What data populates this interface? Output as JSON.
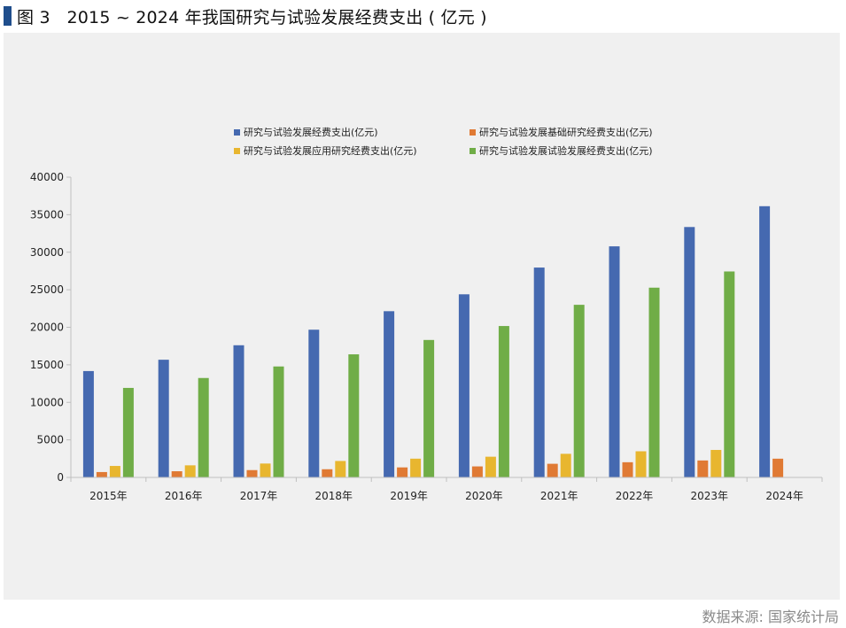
{
  "figure": {
    "label": "图 3",
    "title": "2015 ~ 2024 年我国研究与试验发展经费支出 ( 亿元 )",
    "source": "数据来源: 国家统计局"
  },
  "colors": {
    "series": [
      "#4569b0",
      "#e07a34",
      "#e8b62f",
      "#70ad47"
    ],
    "panel_bg": "#f0f0f0",
    "axis": "#bfbfbf"
  },
  "chart_data": {
    "type": "bar",
    "title": "",
    "xlabel": "",
    "ylabel": "",
    "ylim": [
      0,
      40000
    ],
    "yticks": [
      0,
      5000,
      10000,
      15000,
      20000,
      25000,
      30000,
      35000,
      40000
    ],
    "grid": false,
    "legend_position": "top",
    "categories": [
      "2015年",
      "2016年",
      "2017年",
      "2018年",
      "2019年",
      "2020年",
      "2021年",
      "2022年",
      "2023年",
      "2024年"
    ],
    "series": [
      {
        "name": "研究与试验发展经费支出(亿元)",
        "values": [
          14170,
          15677,
          17606,
          19678,
          22144,
          24393,
          27956,
          30783,
          33357,
          36130
        ]
      },
      {
        "name": "研究与试验发展基础研究经费支出(亿元)",
        "values": [
          716,
          823,
          976,
          1090,
          1336,
          1467,
          1817,
          2023,
          2259,
          2497
        ]
      },
      {
        "name": "研究与试验发展应用研究经费支出(亿元)",
        "values": [
          1529,
          1610,
          1849,
          2191,
          2499,
          2757,
          3145,
          3482,
          3662,
          null
        ]
      },
      {
        "name": "研究与试验发展试验发展经费支出(亿元)",
        "values": [
          11925,
          13244,
          14781,
          16397,
          18310,
          20169,
          22995,
          25278,
          27436,
          null
        ]
      }
    ]
  }
}
